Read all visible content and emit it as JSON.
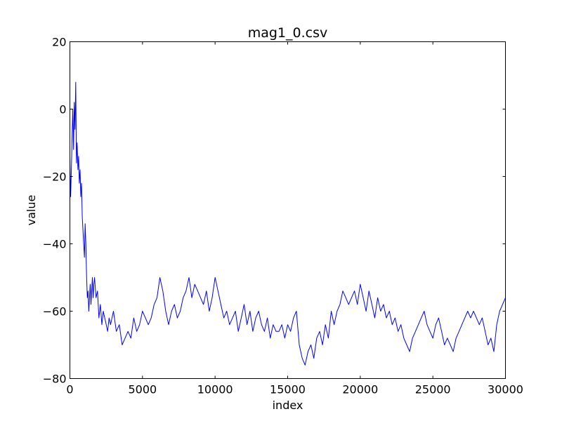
{
  "chart_data": {
    "type": "line",
    "title": "mag1_0.csv",
    "xlabel": "index",
    "ylabel": "value",
    "xlim": [
      0,
      30000
    ],
    "ylim": [
      -80,
      20
    ],
    "xticks": [
      0,
      5000,
      10000,
      15000,
      20000,
      25000,
      30000
    ],
    "xtick_labels": [
      "0",
      "5000",
      "10000",
      "15000",
      "20000",
      "25000",
      "30000"
    ],
    "yticks": [
      20,
      0,
      -20,
      -40,
      -60,
      -80
    ],
    "ytick_labels": [
      "20",
      "0",
      "−20",
      "−40",
      "−60",
      "−80"
    ],
    "grid": false,
    "legend": "none",
    "series": [
      {
        "color": "#0000ff",
        "x": [
          0,
          50,
          100,
          150,
          200,
          250,
          300,
          350,
          400,
          450,
          500,
          550,
          600,
          650,
          700,
          750,
          800,
          850,
          900,
          950,
          1000,
          1050,
          1100,
          1150,
          1200,
          1250,
          1300,
          1350,
          1400,
          1450,
          1500,
          1550,
          1600,
          1650,
          1700,
          1800,
          1900,
          2000,
          2100,
          2200,
          2300,
          2400,
          2500,
          2600,
          2700,
          2800,
          2900,
          3000,
          3200,
          3400,
          3600,
          3800,
          4000,
          4200,
          4400,
          4600,
          4800,
          5000,
          5200,
          5400,
          5600,
          5800,
          6000,
          6200,
          6400,
          6600,
          6800,
          7000,
          7200,
          7400,
          7600,
          7800,
          8000,
          8200,
          8400,
          8600,
          8800,
          9000,
          9200,
          9400,
          9600,
          9800,
          10000,
          10200,
          10400,
          10600,
          10800,
          11000,
          11200,
          11400,
          11600,
          11800,
          12000,
          12200,
          12400,
          12600,
          12800,
          13000,
          13200,
          13400,
          13600,
          13800,
          14000,
          14200,
          14400,
          14600,
          14800,
          15000,
          15200,
          15400,
          15600,
          15800,
          16000,
          16200,
          16400,
          16600,
          16800,
          17000,
          17200,
          17400,
          17600,
          17800,
          18000,
          18200,
          18400,
          18600,
          18800,
          19000,
          19200,
          19400,
          19600,
          19800,
          20000,
          20200,
          20400,
          20600,
          20800,
          21000,
          21200,
          21400,
          21600,
          21800,
          22000,
          22200,
          22400,
          22600,
          22800,
          23000,
          23200,
          23400,
          23600,
          23800,
          24000,
          24200,
          24400,
          24600,
          24800,
          25000,
          25200,
          25400,
          25600,
          25800,
          26000,
          26200,
          26400,
          26600,
          26800,
          27000,
          27200,
          27400,
          27600,
          27800,
          28000,
          28200,
          28400,
          28600,
          28800,
          29000,
          29200,
          29400,
          29600,
          29800,
          30000
        ],
        "y": [
          -14,
          -26,
          -18,
          -8,
          0,
          -12,
          2,
          -6,
          8,
          -16,
          -10,
          -18,
          -14,
          -22,
          -18,
          -26,
          -22,
          -32,
          -36,
          -40,
          -44,
          -34,
          -40,
          -50,
          -56,
          -54,
          -60,
          -56,
          -52,
          -58,
          -54,
          -50,
          -56,
          -52,
          -50,
          -56,
          -54,
          -62,
          -58,
          -64,
          -60,
          -62,
          -64,
          -66,
          -62,
          -64,
          -62,
          -60,
          -66,
          -64,
          -70,
          -68,
          -66,
          -68,
          -62,
          -66,
          -64,
          -60,
          -62,
          -64,
          -62,
          -58,
          -56,
          -50,
          -54,
          -60,
          -64,
          -60,
          -58,
          -62,
          -60,
          -56,
          -54,
          -50,
          -56,
          -52,
          -54,
          -56,
          -58,
          -54,
          -60,
          -56,
          -50,
          -54,
          -58,
          -62,
          -60,
          -64,
          -62,
          -60,
          -66,
          -62,
          -58,
          -64,
          -60,
          -66,
          -62,
          -60,
          -64,
          -66,
          -62,
          -68,
          -64,
          -66,
          -66,
          -64,
          -68,
          -64,
          -66,
          -62,
          -60,
          -70,
          -74,
          -76,
          -72,
          -70,
          -74,
          -68,
          -66,
          -70,
          -64,
          -68,
          -60,
          -64,
          -60,
          -58,
          -54,
          -56,
          -58,
          -56,
          -54,
          -58,
          -52,
          -56,
          -60,
          -54,
          -58,
          -62,
          -56,
          -60,
          -58,
          -62,
          -60,
          -64,
          -62,
          -66,
          -64,
          -68,
          -70,
          -72,
          -68,
          -66,
          -64,
          -62,
          -60,
          -64,
          -66,
          -68,
          -64,
          -62,
          -66,
          -70,
          -68,
          -70,
          -72,
          -68,
          -66,
          -64,
          -62,
          -60,
          -62,
          -60,
          -62,
          -64,
          -62,
          -66,
          -70,
          -68,
          -72,
          -64,
          -60,
          -58,
          -56
        ]
      }
    ]
  }
}
